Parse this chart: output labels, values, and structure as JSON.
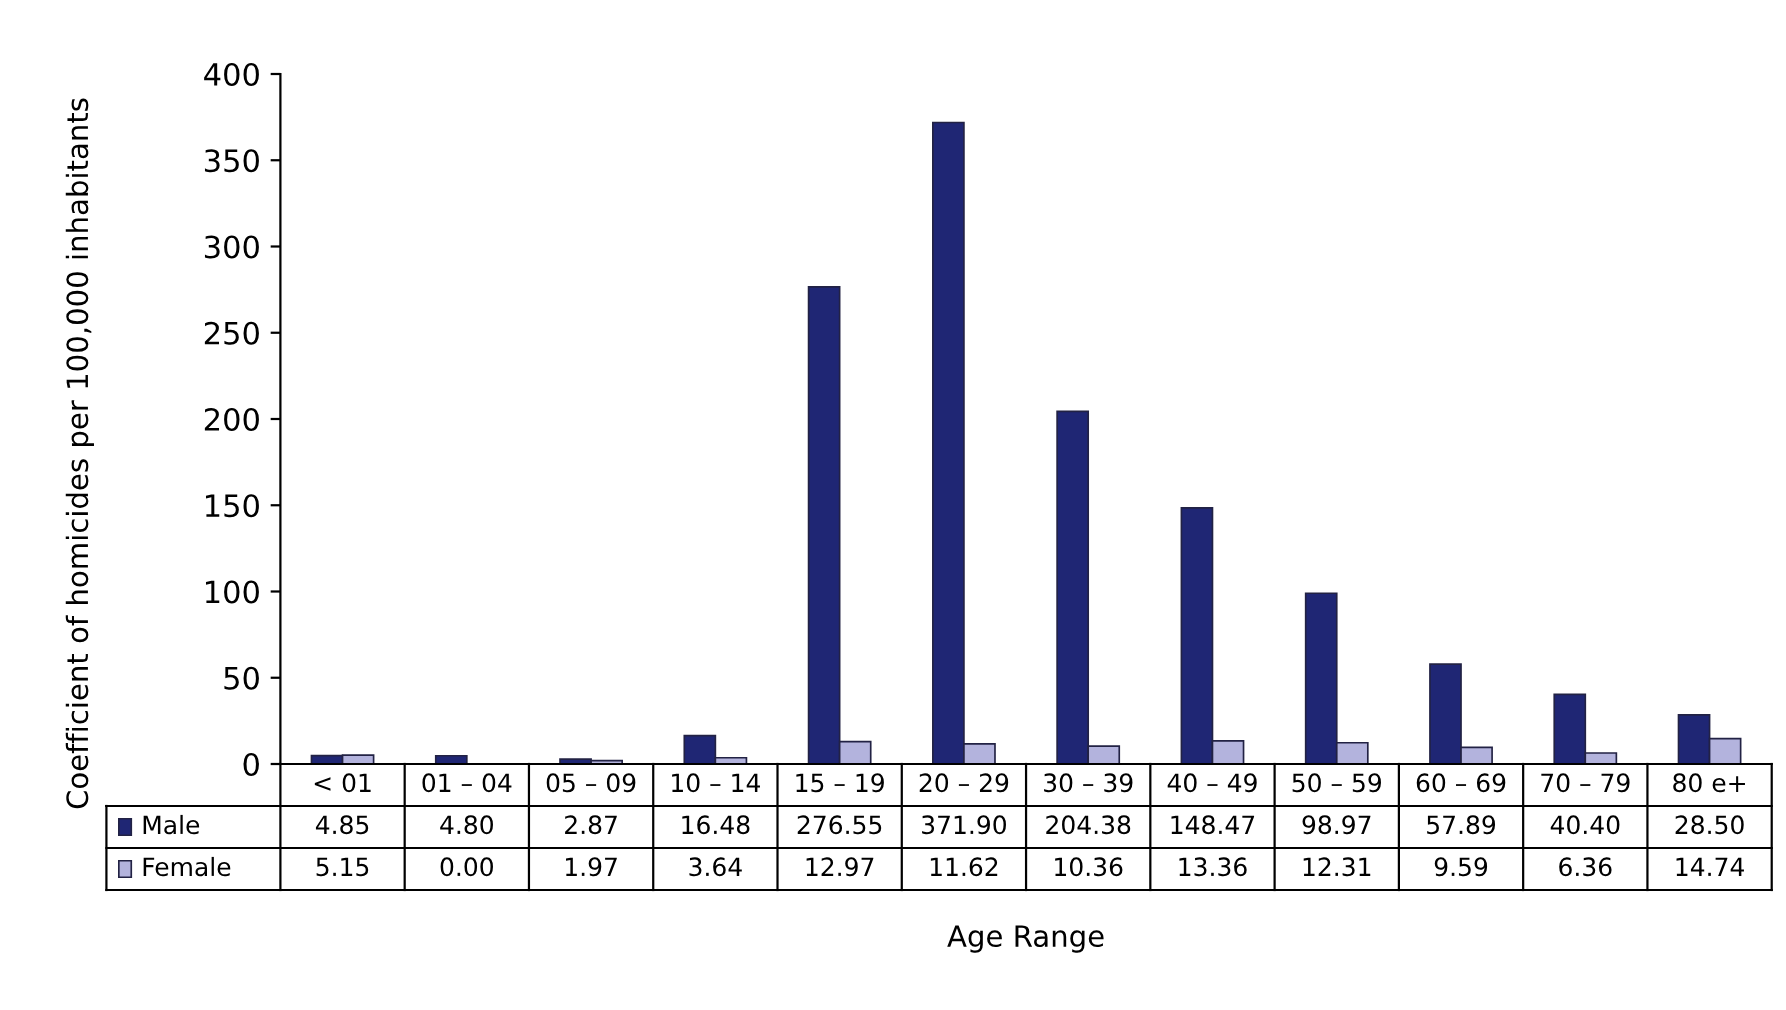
{
  "chart_data": {
    "type": "bar",
    "ylabel": "Coefficient of homicides per 100,000 inhabitants",
    "xlabel": "Age Range",
    "categories": [
      "< 01",
      "01 – 04",
      "05 – 09",
      "10 – 14",
      "15 – 19",
      "20 – 29",
      "30 – 39",
      "40 – 49",
      "50 – 59",
      "60 – 69",
      "70 – 79",
      "80 e+"
    ],
    "series": [
      {
        "name": "Male",
        "color": "#1f2674",
        "values": [
          4.85,
          4.8,
          2.87,
          16.48,
          276.55,
          371.9,
          204.38,
          148.47,
          98.97,
          57.89,
          40.4,
          28.5
        ],
        "value_labels": [
          "4.85",
          "4.80",
          "2.87",
          "16.48",
          "276.55",
          "371.90",
          "204.38",
          "148.47",
          "98.97",
          "57.89",
          "40.40",
          "28.50"
        ]
      },
      {
        "name": "Female",
        "color": "#b3b3dd",
        "values": [
          5.15,
          0.0,
          1.97,
          3.64,
          12.97,
          11.62,
          10.36,
          13.36,
          12.31,
          9.59,
          6.36,
          14.74
        ],
        "value_labels": [
          "5.15",
          "0.00",
          "1.97",
          "3.64",
          "12.97",
          "11.62",
          "10.36",
          "13.36",
          "12.31",
          "9.59",
          "6.36",
          "14.74"
        ]
      }
    ],
    "ylim": [
      0,
      400
    ],
    "yticks": [
      0,
      50,
      100,
      150,
      200,
      250,
      300,
      350,
      400
    ],
    "grid": false,
    "legend": "bottom"
  }
}
